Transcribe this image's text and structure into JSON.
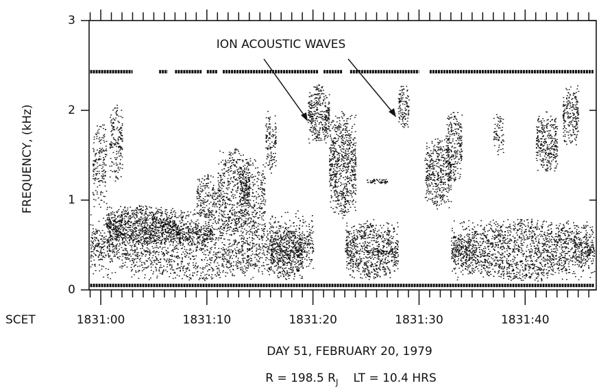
{
  "chart_data": {
    "type": "spectrogram",
    "y_label": "FREQUENCY, (kHz)",
    "x_axis_title": "SCET",
    "subtitle": "DAY 51,   FEBRUARY 20, 1979",
    "footnote": {
      "left": "R = 198.5 R",
      "subscript": "J",
      "right": "LT = 10.4 HRS"
    },
    "annotation": "ION ACOUSTIC WAVES",
    "xlim": [
      -1.1,
      46.7
    ],
    "ylim": [
      0,
      3
    ],
    "yticks": [
      0,
      1,
      2,
      3
    ],
    "xticks": [
      {
        "value": 0,
        "label": "1831:00"
      },
      {
        "value": 10,
        "label": "1831:10"
      },
      {
        "value": 20,
        "label": "1831:20"
      },
      {
        "value": 30,
        "label": "1831:30"
      },
      {
        "value": 40,
        "label": "1831:40"
      }
    ],
    "xminorticks": [
      -1,
      1,
      2,
      3,
      4,
      5,
      6,
      7,
      8,
      9,
      11,
      12,
      13,
      14,
      15,
      16,
      17,
      18,
      19,
      21,
      22,
      23,
      24,
      25,
      26,
      27,
      28,
      29,
      31,
      32,
      33,
      34,
      35,
      36,
      37,
      38,
      39,
      41,
      42,
      43,
      44,
      45,
      46
    ],
    "color": "#111111",
    "lines": [
      {
        "f": 0.05,
        "segments": [
          [
            -1,
            46.5
          ]
        ]
      },
      {
        "f": 2.43,
        "segments": [
          [
            -1,
            3
          ],
          [
            5.5,
            6.3
          ],
          [
            7,
            9.5
          ],
          [
            10,
            11
          ],
          [
            11.5,
            20.5
          ],
          [
            21,
            22.8
          ],
          [
            23.5,
            30
          ],
          [
            31,
            46.5
          ]
        ]
      }
    ],
    "regions": [
      {
        "t0": -1,
        "t1": 20,
        "f0": 0.1,
        "f1": 0.9,
        "density": 0.3
      },
      {
        "t0": -0.8,
        "t1": 0.5,
        "f0": 0.9,
        "f1": 1.9,
        "density": 0.3
      },
      {
        "t0": 0.8,
        "t1": 2,
        "f0": 1.2,
        "f1": 2.1,
        "density": 0.35
      },
      {
        "t0": 0.5,
        "t1": 7,
        "f0": 0.5,
        "f1": 0.95,
        "density": 0.6
      },
      {
        "t0": 7,
        "t1": 10.5,
        "f0": 0.5,
        "f1": 0.75,
        "density": 0.6
      },
      {
        "t0": 9,
        "t1": 11,
        "f0": 0.8,
        "f1": 1.3,
        "density": 0.35
      },
      {
        "t0": 11,
        "t1": 14,
        "f0": 0.6,
        "f1": 1.6,
        "density": 0.35
      },
      {
        "t0": 13,
        "t1": 15.5,
        "f0": 0.7,
        "f1": 1.5,
        "density": 0.3
      },
      {
        "t0": 15.5,
        "t1": 16.5,
        "f0": 1.3,
        "f1": 2.0,
        "density": 0.4
      },
      {
        "t0": 16,
        "t1": 19,
        "f0": 0.1,
        "f1": 0.7,
        "density": 0.45
      },
      {
        "t0": 19.5,
        "t1": 21.5,
        "f0": 1.6,
        "f1": 2.3,
        "density": 0.55
      },
      {
        "t0": 21.5,
        "t1": 24,
        "f0": 0.8,
        "f1": 2.0,
        "density": 0.5
      },
      {
        "t0": 23,
        "t1": 28,
        "f0": 0.1,
        "f1": 0.8,
        "density": 0.45
      },
      {
        "t0": 25,
        "t1": 27,
        "f0": 1.18,
        "f1": 1.24,
        "density": 0.9
      },
      {
        "t0": 25,
        "t1": 27.5,
        "f0": 0.4,
        "f1": 0.45,
        "density": 0.9
      },
      {
        "t0": 28,
        "t1": 29,
        "f0": 1.8,
        "f1": 2.3,
        "density": 0.5
      },
      {
        "t0": 30.5,
        "t1": 33,
        "f0": 0.9,
        "f1": 1.7,
        "density": 0.45
      },
      {
        "t0": 32.5,
        "t1": 34,
        "f0": 1.2,
        "f1": 2.0,
        "density": 0.45
      },
      {
        "t0": 33,
        "t1": 46.5,
        "f0": 0.1,
        "f1": 0.8,
        "density": 0.45
      },
      {
        "t0": 37,
        "t1": 38,
        "f0": 1.5,
        "f1": 2.0,
        "density": 0.3
      },
      {
        "t0": 41,
        "t1": 43,
        "f0": 1.3,
        "f1": 2.0,
        "density": 0.5
      },
      {
        "t0": 43.5,
        "t1": 45,
        "f0": 1.6,
        "f1": 2.3,
        "density": 0.45
      }
    ]
  }
}
